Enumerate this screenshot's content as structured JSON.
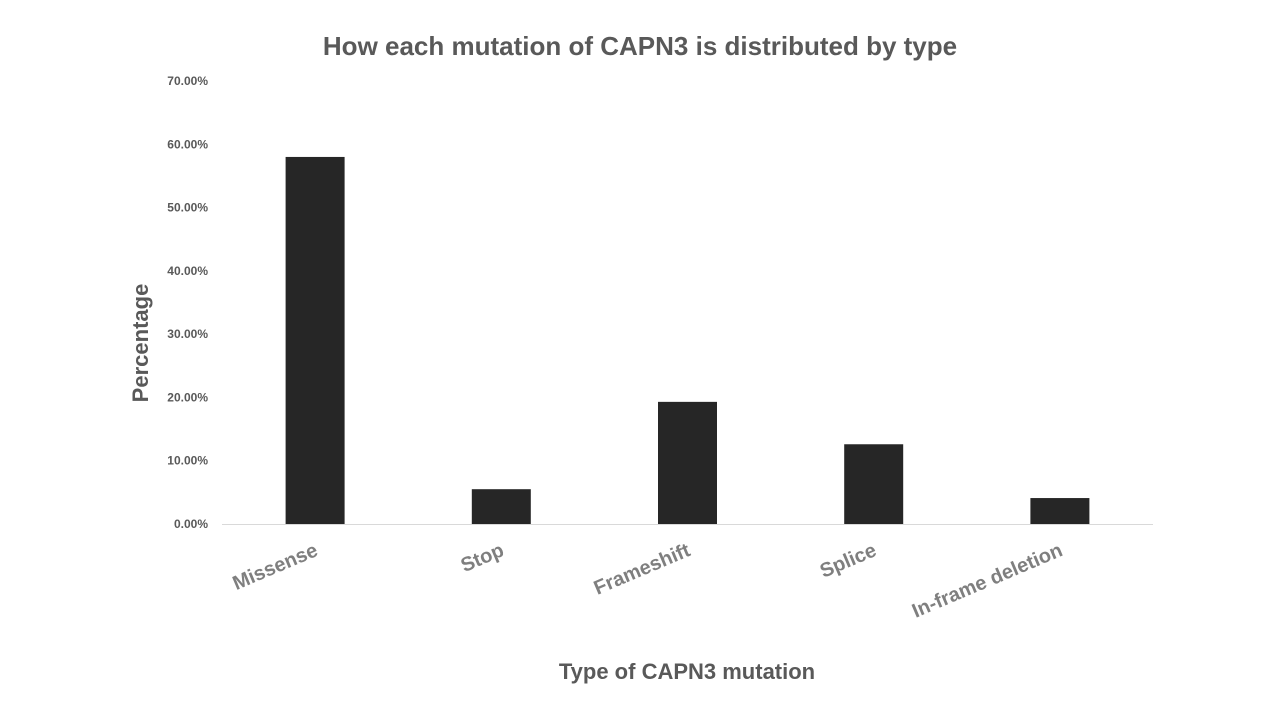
{
  "chart_data": {
    "type": "bar",
    "title": "How each mutation of CAPN3 is distributed by type",
    "xlabel": "Type of CAPN3 mutation",
    "ylabel": "Percentage",
    "categories": [
      "Missense",
      "Stop",
      "Frameshift",
      "Splice",
      "In-frame deletion"
    ],
    "values": [
      58.0,
      5.5,
      19.3,
      12.6,
      4.1
    ],
    "ylim": [
      0,
      70
    ],
    "yticks": [
      0,
      10,
      20,
      30,
      40,
      50,
      60,
      70
    ],
    "ytick_labels": [
      "0.00%",
      "10.00%",
      "20.00%",
      "30.00%",
      "40.00%",
      "50.00%",
      "60.00%",
      "70.00%"
    ],
    "bar_color": "#262626",
    "axis_color": "#d9d9d9",
    "grid": false,
    "legend": "none"
  }
}
